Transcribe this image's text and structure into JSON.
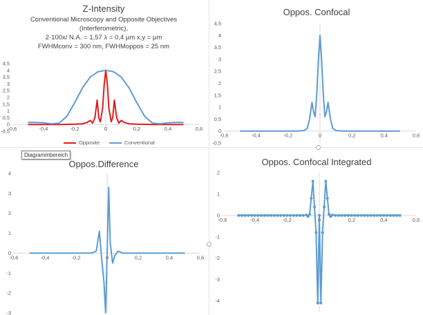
{
  "tooltip": "Diagrammbereich",
  "colors": {
    "opposite": "#e31a1c",
    "conventional": "#5b9bd5",
    "axis": "#d9d9d9",
    "text": "#595959"
  },
  "chart_data": [
    {
      "id": "z-intensity",
      "type": "line",
      "title": "Z-Intensity",
      "subtitle_lines": [
        "Conventional Microscopy and Opposite Objectives",
        "(Interferometric),",
        "2·100x/ N.A. = 1,57  λ = 0,4 µm  x,y = µm",
        "FWHMconv = 300 nm, FWHMoppos = 25 nm"
      ],
      "xlim": [
        -0.6,
        0.6
      ],
      "ylim": [
        -0.5,
        4.5
      ],
      "xticks": [
        "-0,6",
        "-0,4",
        "-0,2",
        "0",
        "0,2",
        "0,4",
        "0,6"
      ],
      "yticks": [
        "-0,5",
        "0",
        "0,5",
        "1",
        "1,5",
        "2",
        "2,5",
        "3",
        "3,5",
        "4",
        "4,5"
      ],
      "legend_position": "bottom",
      "series": [
        {
          "name": "Opposite",
          "color": "#e31a1c",
          "x": [
            -0.5,
            -0.3,
            -0.2,
            -0.15,
            -0.12,
            -0.1,
            -0.085,
            -0.07,
            -0.055,
            -0.045,
            -0.035,
            -0.02,
            -0.01,
            0,
            0.01,
            0.02,
            0.035,
            0.045,
            0.055,
            0.07,
            0.085,
            0.1,
            0.12,
            0.15,
            0.2,
            0.3,
            0.5
          ],
          "y": [
            0,
            0,
            0.02,
            0.05,
            0.15,
            0.3,
            0.1,
            0.5,
            1.8,
            0.5,
            0.2,
            1.2,
            3.0,
            4.0,
            3.0,
            1.2,
            0.2,
            0.5,
            1.8,
            0.5,
            0.1,
            0.3,
            0.15,
            0.05,
            0.02,
            0,
            0
          ]
        },
        {
          "name": "Conventional",
          "color": "#5b9bd5",
          "x": [
            -0.5,
            -0.45,
            -0.4,
            -0.35,
            -0.3,
            -0.25,
            -0.2,
            -0.15,
            -0.1,
            -0.05,
            0,
            0.05,
            0.1,
            0.15,
            0.2,
            0.25,
            0.3,
            0.35,
            0.4,
            0.45,
            0.5
          ],
          "y": [
            0.15,
            0.15,
            0.12,
            0.05,
            0.1,
            0.6,
            1.6,
            2.7,
            3.5,
            3.9,
            4.0,
            3.9,
            3.5,
            2.7,
            1.6,
            0.6,
            0.1,
            0.05,
            0.12,
            0.15,
            0.15
          ]
        }
      ]
    },
    {
      "id": "oppos-confocal",
      "type": "line",
      "title": "Oppos. Confocal",
      "xlim": [
        -0.6,
        0.6
      ],
      "ylim": [
        -0.5,
        4.5
      ],
      "xticks": [
        "-0,6",
        "-0,4",
        "-0,2",
        "0",
        "0,2",
        "0,4",
        "0,6"
      ],
      "yticks": [
        "-0,5",
        "0",
        "0,5",
        "1",
        "1,5",
        "2",
        "2,5",
        "3",
        "3,5",
        "4",
        "4,5"
      ],
      "series": [
        {
          "color": "#5b9bd5",
          "x": [
            -0.5,
            -0.15,
            -0.1,
            -0.08,
            -0.065,
            -0.05,
            -0.04,
            -0.03,
            -0.02,
            -0.01,
            0,
            0.01,
            0.02,
            0.03,
            0.04,
            0.05,
            0.065,
            0.08,
            0.1,
            0.15,
            0.5
          ],
          "y": [
            0,
            0,
            0.02,
            0.1,
            0.5,
            1.2,
            0.8,
            0.6,
            1.6,
            3.0,
            4.0,
            3.0,
            1.6,
            0.6,
            0.8,
            1.2,
            0.5,
            0.1,
            0.02,
            0,
            0
          ]
        }
      ]
    },
    {
      "id": "oppos-difference",
      "type": "line",
      "title": "Oppos.Difference",
      "xlim": [
        -0.6,
        0.6
      ],
      "ylim": [
        -3,
        4
      ],
      "xticks": [
        "-0,6",
        "-0,4",
        "-0,2",
        "0",
        "0,2",
        "0,4",
        "0,6"
      ],
      "yticks": [
        "-3",
        "-2",
        "-1",
        "0",
        "1",
        "2",
        "3",
        "4"
      ],
      "series": [
        {
          "color": "#5b9bd5",
          "x": [
            -0.5,
            -0.1,
            -0.07,
            -0.05,
            -0.035,
            -0.02,
            -0.01,
            0,
            0.01,
            0.02,
            0.035,
            0.05,
            0.07,
            0.1,
            0.5
          ],
          "y": [
            0,
            0,
            0.1,
            1.1,
            -0.3,
            -1.5,
            -3.0,
            0,
            3.3,
            0.5,
            -0.5,
            -0.1,
            0.1,
            0,
            0
          ]
        }
      ]
    },
    {
      "id": "oppos-confocal-integrated",
      "type": "line",
      "title": "Oppos. Confocal Integrated",
      "xlim": [
        -0.6,
        0.6
      ],
      "ylim": [
        -4.5,
        2
      ],
      "xticks": [
        "-0,6",
        "-0,4",
        "-0,2",
        "0",
        "0,2",
        "0,4",
        "0,6"
      ],
      "yticks": [
        "-4",
        "-3",
        "-2",
        "-1",
        "0",
        "1",
        "2"
      ],
      "markers": true,
      "series": [
        {
          "color": "#5b9bd5",
          "x": [
            -0.5,
            -0.48,
            -0.46,
            -0.44,
            -0.42,
            -0.4,
            -0.38,
            -0.36,
            -0.34,
            -0.32,
            -0.3,
            -0.28,
            -0.26,
            -0.24,
            -0.22,
            -0.2,
            -0.18,
            -0.16,
            -0.14,
            -0.12,
            -0.1,
            -0.08,
            -0.07,
            -0.06,
            -0.05,
            -0.04,
            -0.03,
            -0.02,
            -0.01,
            0,
            0.01,
            0.02,
            0.03,
            0.04,
            0.05,
            0.06,
            0.07,
            0.08,
            0.1,
            0.12,
            0.14,
            0.16,
            0.18,
            0.2,
            0.22,
            0.24,
            0.26,
            0.28,
            0.3,
            0.32,
            0.34,
            0.36,
            0.38,
            0.4,
            0.42,
            0.44,
            0.46,
            0.48,
            0.5
          ],
          "y": [
            0,
            0,
            0,
            0,
            0,
            0,
            0,
            0,
            0,
            0,
            0,
            0,
            0,
            0,
            0,
            0,
            0,
            0,
            0,
            0,
            0,
            0.02,
            -0.05,
            0.05,
            0.8,
            1.6,
            0.4,
            -0.8,
            -4.1,
            0,
            -4.1,
            -0.8,
            0.4,
            1.6,
            0.8,
            0.05,
            -0.05,
            0.02,
            0,
            0,
            0,
            0,
            0,
            0,
            0,
            0,
            0,
            0,
            0,
            0,
            0,
            0,
            0,
            0,
            0,
            0,
            0,
            0,
            0
          ]
        }
      ]
    }
  ]
}
